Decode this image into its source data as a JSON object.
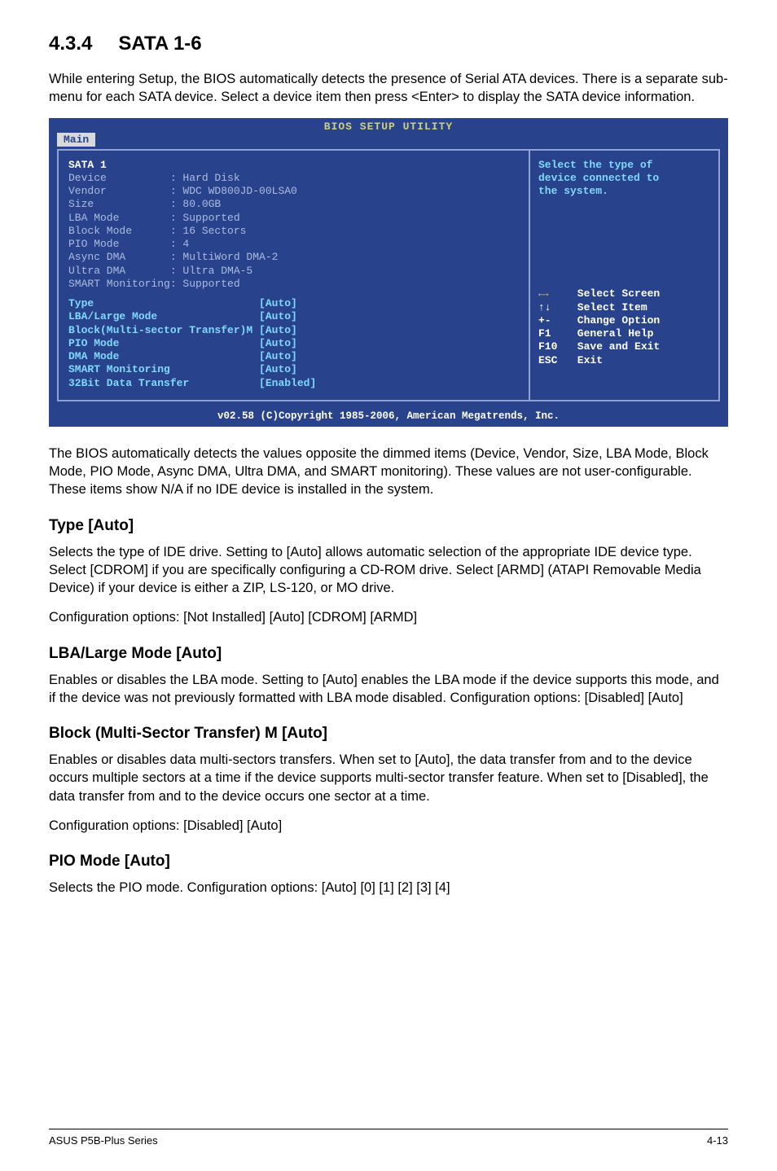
{
  "section": {
    "number": "4.3.4",
    "title": "SATA 1-6",
    "intro": "While entering Setup, the BIOS automatically detects the presence of Serial ATA devices. There is a separate sub-menu for each SATA device. Select a device item then press <Enter> to display the SATA device information."
  },
  "bios": {
    "headerTitle": "BIOS SETUP UTILITY",
    "tab": "Main",
    "left": {
      "title": "SATA 1",
      "staticRows": [
        {
          "k": "Device",
          "v": ": Hard Disk"
        },
        {
          "k": "Vendor",
          "v": ": WDC WD800JD-00LSA0"
        },
        {
          "k": "Size",
          "v": ": 80.0GB"
        },
        {
          "k": "LBA Mode",
          "v": ": Supported"
        },
        {
          "k": "Block Mode",
          "v": ": 16 Sectors"
        },
        {
          "k": "PIO Mode",
          "v": ": 4"
        },
        {
          "k": "Async DMA",
          "v": ": MultiWord DMA-2"
        },
        {
          "k": "Ultra DMA",
          "v": ": Ultra DMA-5"
        },
        {
          "k": "SMART Monitoring",
          "v": ": Supported",
          "single": true
        }
      ],
      "opts": [
        {
          "k": "Type",
          "v": "[Auto]"
        },
        {
          "k": "LBA/Large Mode",
          "v": "[Auto]"
        },
        {
          "k": "Block(Multi-sector Transfer)M",
          "v": "[Auto]"
        },
        {
          "k": "PIO Mode",
          "v": "[Auto]"
        },
        {
          "k": "DMA Mode",
          "v": "[Auto]"
        },
        {
          "k": "SMART Monitoring",
          "v": "[Auto]"
        },
        {
          "k": "32Bit Data Transfer",
          "v": "[Enabled]"
        }
      ]
    },
    "right": {
      "tip1": "Select the type of",
      "tip2": "device connected to",
      "tip3": "the system.",
      "help": [
        {
          "k": "←→",
          "arrows": true,
          "v": "Select Screen"
        },
        {
          "k": "↑↓",
          "v": "Select Item"
        },
        {
          "k": "+-",
          "v": "Change Option"
        },
        {
          "k": "F1",
          "v": "General Help"
        },
        {
          "k": "F10",
          "v": "Save and Exit"
        },
        {
          "k": "ESC",
          "v": "Exit"
        }
      ]
    },
    "footer": "v02.58 (C)Copyright 1985-2006, American Megatrends, Inc."
  },
  "after": {
    "p1": "The BIOS automatically detects the values opposite the dimmed items (Device, Vendor, Size, LBA Mode, Block Mode, PIO Mode, Async DMA, Ultra DMA, and SMART monitoring). These values are not user-configurable. These items show N/A if no IDE device is installed in the system."
  },
  "subs": {
    "type": {
      "h": "Type [Auto]",
      "p": "Selects the type of IDE drive. Setting to [Auto] allows automatic selection of the appropriate IDE device type. Select [CDROM] if you are specifically configuring a CD-ROM drive. Select [ARMD] (ATAPI Removable Media Device) if your device is either a ZIP, LS-120, or MO drive.",
      "cfg": "Configuration options: [Not Installed] [Auto] [CDROM] [ARMD]"
    },
    "lba": {
      "h": "LBA/Large Mode [Auto]",
      "p": "Enables or disables the LBA mode. Setting to [Auto] enables the LBA mode if the device supports this mode, and if the device was not previously formatted with LBA mode disabled. Configuration options: [Disabled] [Auto]"
    },
    "block": {
      "h": "Block (Multi-Sector Transfer) M [Auto]",
      "p": "Enables or disables data multi-sectors transfers. When set to [Auto], the data transfer from and to the device occurs multiple sectors at a time if the device supports multi-sector transfer feature. When set to [Disabled], the data transfer from and to the device occurs one sector at a time.",
      "cfg": "Configuration options: [Disabled] [Auto]"
    },
    "pio": {
      "h": "PIO Mode [Auto]",
      "p": "Selects the PIO mode. Configuration options: [Auto] [0] [1] [2] [3] [4]"
    }
  },
  "footer": {
    "left": "ASUS P5B-Plus Series",
    "right": "4-13"
  },
  "styleNotes": {
    "biosBg": "#29428c",
    "biosBorder": "#8fa2d6",
    "biosHeaderColor": "#d0d07a",
    "dimmedText": "#a8bde0",
    "highlight": "#7fd9ff"
  }
}
